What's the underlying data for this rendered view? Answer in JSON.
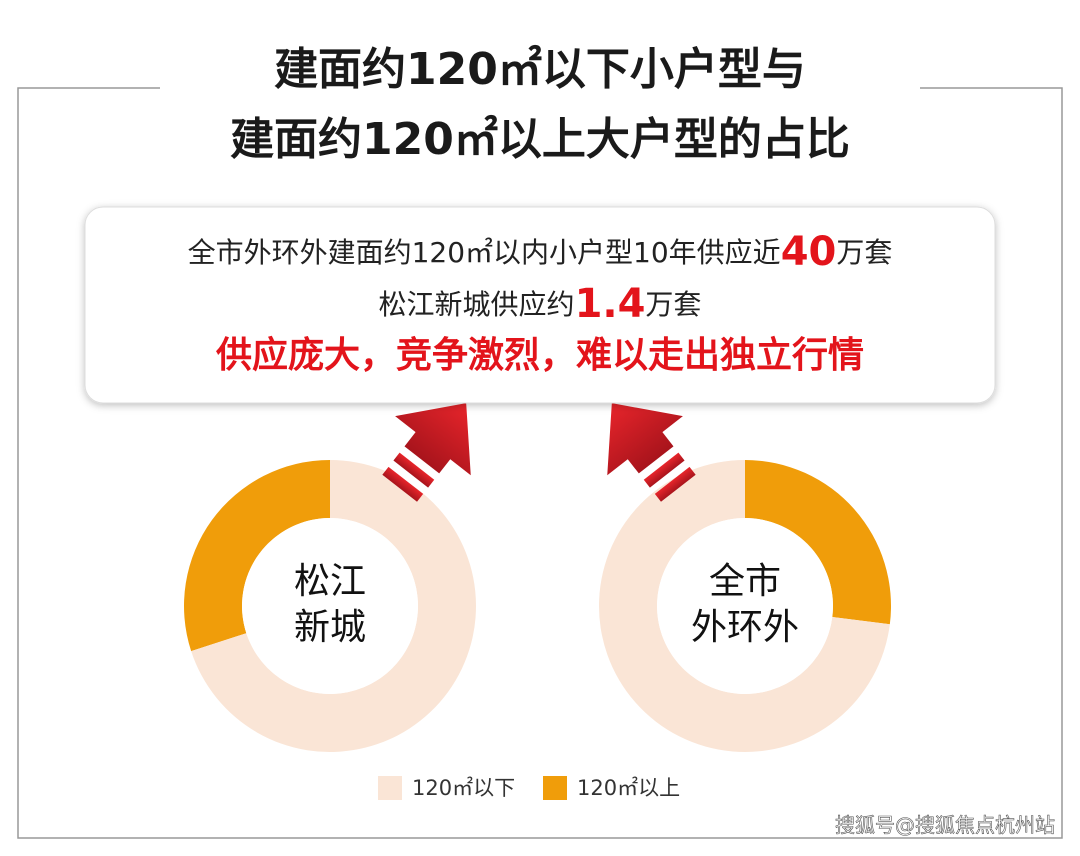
{
  "title": [
    "建面约120㎡以下小户型与",
    "建面约120㎡以上大户型的占比"
  ],
  "callout": {
    "lines": [
      [
        "全市外环外建面约120㎡以内小户型10年供应近",
        "40",
        "万套"
      ],
      [
        "松江新城供应约",
        "1.4",
        "万套"
      ],
      [
        "供应庞大，竞争激烈，难以走出独立行情"
      ]
    ]
  },
  "chart_data": [
    {
      "type": "donut",
      "center_label": [
        "松江",
        "新城"
      ],
      "direction": "counterclockwise",
      "categories": [
        "120㎡以下",
        "120㎡以上"
      ],
      "colors": [
        "#fae5d6",
        "#f09d0a"
      ],
      "values": [
        70,
        30
      ]
    },
    {
      "type": "donut",
      "center_label": [
        "全市",
        "外环外"
      ],
      "direction": "clockwise",
      "categories": [
        "120㎡以下",
        "120㎡以上"
      ],
      "colors": [
        "#fae5d6",
        "#f09d0a"
      ],
      "values": [
        73,
        27
      ]
    }
  ],
  "watermark": "搜狐号@搜狐焦点杭州站"
}
